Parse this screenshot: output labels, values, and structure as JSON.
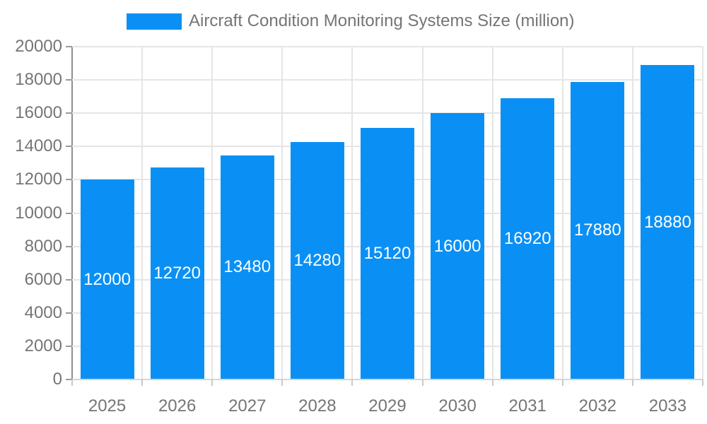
{
  "legend": {
    "label": "Aircraft Condition Monitoring Systems Size (million)",
    "swatch_color": "#0a90f5"
  },
  "chart_data": {
    "type": "bar",
    "title": "Aircraft Condition Monitoring Systems Size (million)",
    "categories": [
      "2025",
      "2026",
      "2027",
      "2028",
      "2029",
      "2030",
      "2031",
      "2032",
      "2033"
    ],
    "series": [
      {
        "name": "Aircraft Condition Monitoring Systems Size (million)",
        "values": [
          12000,
          12720,
          13480,
          14280,
          15120,
          16000,
          16920,
          17880,
          18880
        ],
        "color": "#0a90f5"
      }
    ],
    "value_labels": [
      12000,
      12720,
      13480,
      14280,
      15120,
      16000,
      16920,
      17880,
      18880
    ],
    "xlabel": "",
    "ylabel": "",
    "ylim": [
      0,
      20000
    ],
    "yticks": [
      0,
      2000,
      4000,
      6000,
      8000,
      10000,
      12000,
      14000,
      16000,
      18000,
      20000
    ],
    "grid": true,
    "legend_position": "top",
    "value_label_position": "inside-center",
    "value_label_color": "#ffffff"
  },
  "colors": {
    "bar": "#0a90f5",
    "grid_line": "#e5e5e5",
    "y_axis_line": "#8f8f8f",
    "x_axis_line": "#d6d6d6",
    "tick_text": "#757575",
    "background": "#ffffff"
  }
}
